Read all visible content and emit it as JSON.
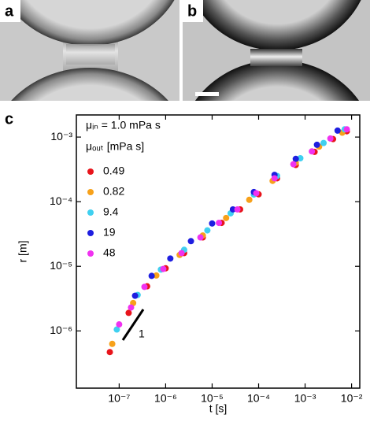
{
  "panel_labels": [
    "a",
    "b",
    "c"
  ],
  "chart_data": {
    "type": "scatter",
    "xlabel": "t [s]",
    "ylabel": "r [m]",
    "log_x": true,
    "log_y": true,
    "legend_title": [
      "μᵢₙ = 1.0 mPa s",
      "μₒᵤₜ [mPa s]"
    ],
    "legend_loc": "upper left",
    "slope_label": "1",
    "xlim": [
      1.2e-08,
      0.015
    ],
    "ylim": [
      1.3e-07,
      0.0022
    ],
    "xticks": [
      {
        "value": 1e-07,
        "label": "10⁻⁷"
      },
      {
        "value": 1e-06,
        "label": "10⁻⁶"
      },
      {
        "value": 1e-05,
        "label": "10⁻⁵"
      },
      {
        "value": 0.0001,
        "label": "10⁻⁴"
      },
      {
        "value": 0.001,
        "label": "10⁻³"
      },
      {
        "value": 0.01,
        "label": "10⁻²"
      }
    ],
    "yticks": [
      {
        "value": 1e-06,
        "label": "10⁻⁶"
      },
      {
        "value": 1e-05,
        "label": "10⁻⁵"
      },
      {
        "value": 0.0001,
        "label": "10⁻⁴"
      },
      {
        "value": 0.001,
        "label": "10⁻³"
      }
    ],
    "series": [
      {
        "name": "0.49",
        "color": "#e8141b",
        "x": [
          6.3e-08,
          1.6e-07,
          4e-07,
          1e-06,
          2.5e-06,
          6.3e-06,
          1.6e-05,
          4e-05,
          0.0001,
          0.00025,
          0.00063,
          0.0016,
          0.004,
          0.0079
        ],
        "values": [
          4.7e-07,
          1.9e-06,
          4.9e-06,
          9.3e-06,
          1.6e-05,
          2.8e-05,
          4.7e-05,
          7.6e-05,
          0.00013,
          0.00023,
          0.00037,
          0.00059,
          0.00093,
          0.00123
        ]
      },
      {
        "name": "0.82",
        "color": "#f7a11a",
        "x": [
          7.1e-08,
          2e-07,
          6.3e-07,
          2e-06,
          6.3e-06,
          2e-05,
          6.3e-05,
          0.0002,
          0.00063,
          0.002,
          0.0063
        ],
        "values": [
          6.3e-07,
          2.7e-06,
          7.2e-06,
          1.5e-05,
          3e-05,
          5.6e-05,
          0.000107,
          0.00021,
          0.0004,
          0.00071,
          0.00117
        ]
      },
      {
        "name": "9.4",
        "color": "#3fd0f0",
        "x": [
          8.9e-08,
          2.5e-07,
          7.9e-07,
          2.5e-06,
          7.9e-06,
          2.5e-05,
          7.9e-05,
          0.00025,
          0.00079,
          0.0025,
          0.0071
        ],
        "values": [
          1.05e-06,
          3.6e-06,
          8.9e-06,
          1.8e-05,
          3.6e-05,
          6.6e-05,
          0.000129,
          0.00025,
          0.00047,
          0.00081,
          0.00132
        ]
      },
      {
        "name": "19",
        "color": "#1e1ee0",
        "x": [
          2.2e-07,
          5e-07,
          1.26e-06,
          3.5e-06,
          1e-05,
          2.8e-05,
          7.9e-05,
          0.00022,
          0.00063,
          0.0018,
          0.005
        ],
        "values": [
          3.5e-06,
          7.1e-06,
          1.32e-05,
          2.45e-05,
          4.6e-05,
          7.6e-05,
          0.000141,
          0.00026,
          0.00046,
          0.00076,
          0.00126
        ]
      },
      {
        "name": "48",
        "color": "#f032f0",
        "x": [
          1e-07,
          1.8e-07,
          3.5e-07,
          8.9e-07,
          2.2e-06,
          5.6e-06,
          1.4e-05,
          3.5e-05,
          8.9e-05,
          0.00022,
          0.00056,
          0.0014,
          0.0035,
          0.0079
        ],
        "values": [
          1.26e-06,
          2.3e-06,
          4.8e-06,
          9.1e-06,
          1.6e-05,
          2.8e-05,
          4.7e-05,
          7.6e-05,
          0.000135,
          0.00023,
          0.00038,
          0.0006,
          0.00095,
          0.00132
        ]
      }
    ]
  }
}
